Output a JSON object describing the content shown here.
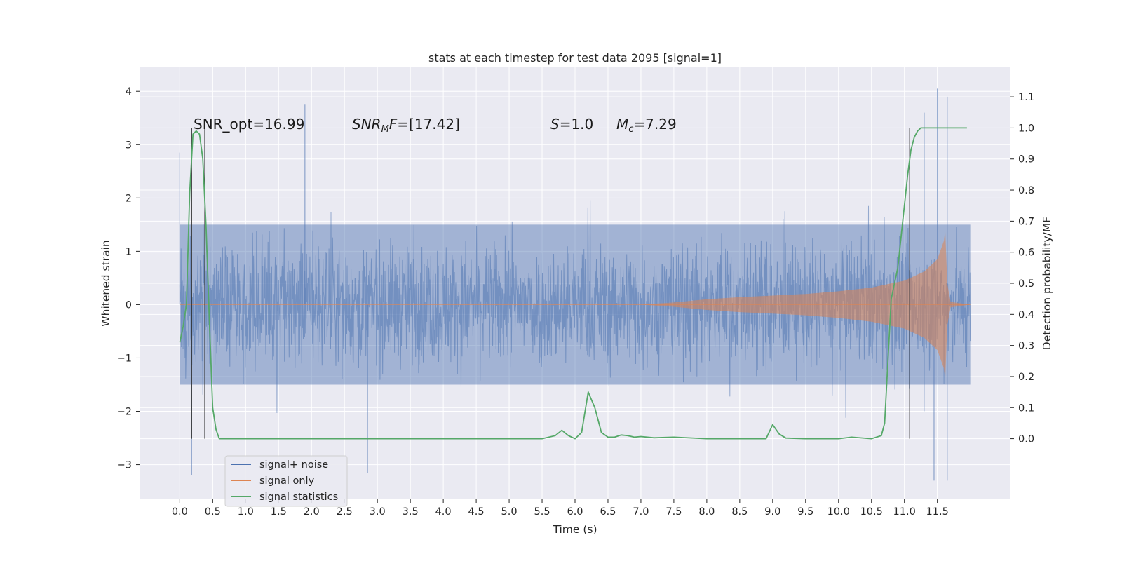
{
  "chart_data": {
    "type": "line",
    "title": "stats at each timestep for test data 2095 [signal=1]",
    "xlabel": "Time (s)",
    "ylabel": "Whitened strain",
    "y2label": "Detection probability/MF",
    "xlim": [
      -0.6,
      12.6
    ],
    "ylim": [
      -3.65,
      4.45
    ],
    "y2lim": [
      -0.195,
      1.195
    ],
    "x_ticks": [
      0.0,
      0.5,
      1.0,
      1.5,
      2.0,
      2.5,
      3.0,
      3.5,
      4.0,
      4.5,
      5.0,
      5.5,
      6.0,
      6.5,
      7.0,
      7.5,
      8.0,
      8.5,
      9.0,
      9.5,
      10.0,
      10.5,
      11.0,
      11.5
    ],
    "x_tick_labels": [
      "0.0",
      "0.5",
      "1.0",
      "1.5",
      "2.0",
      "2.5",
      "3.0",
      "3.5",
      "4.0",
      "4.5",
      "5.0",
      "5.5",
      "6.0",
      "6.5",
      "7.0",
      "7.5",
      "8.0",
      "8.5",
      "9.0",
      "9.5",
      "10.0",
      "10.5",
      "11.0",
      "11.5"
    ],
    "y_ticks": [
      -3,
      -2,
      -1,
      0,
      1,
      2,
      3,
      4
    ],
    "y_tick_labels": [
      "−3",
      "−2",
      "−1",
      "0",
      "1",
      "2",
      "3",
      "4"
    ],
    "y2_ticks": [
      0.0,
      0.1,
      0.2,
      0.3,
      0.4,
      0.5,
      0.6,
      0.7,
      0.8,
      0.9,
      1.0,
      1.1
    ],
    "y2_tick_labels": [
      "0.0",
      "0.1",
      "0.2",
      "0.3",
      "0.4",
      "0.5",
      "0.6",
      "0.7",
      "0.8",
      "0.9",
      "1.0",
      "1.1"
    ],
    "grid": true,
    "legend_position": "lower-left",
    "series": [
      {
        "name": "signal+ noise",
        "color": "#4c72b0",
        "x_range": [
          0.0,
          12.0
        ],
        "envelope_upper_approx": 1.5,
        "envelope_lower_approx": -1.5,
        "peaks": [
          [
            0.0,
            2.85
          ],
          [
            1.9,
            3.75
          ],
          [
            11.3,
            3.6
          ],
          [
            11.5,
            4.05
          ],
          [
            11.65,
            3.9
          ],
          [
            0.18,
            -3.2
          ],
          [
            11.65,
            -3.3
          ],
          [
            11.45,
            -3.3
          ],
          [
            2.85,
            -3.15
          ]
        ]
      },
      {
        "name": "signal only",
        "color": "#dd8452",
        "x": [
          0.0,
          7.0,
          7.5,
          8.0,
          8.5,
          9.0,
          9.5,
          10.0,
          10.5,
          11.0,
          11.3,
          11.5,
          11.6,
          11.62,
          11.65,
          11.7,
          12.0
        ],
        "amplitude": [
          0.0,
          0.0,
          0.04,
          0.1,
          0.14,
          0.17,
          0.2,
          0.25,
          0.32,
          0.45,
          0.62,
          0.85,
          1.2,
          1.4,
          0.4,
          0.05,
          0.0
        ]
      },
      {
        "name": "signal statistics",
        "color": "#55a868",
        "axis": "right",
        "x": [
          0.0,
          0.05,
          0.1,
          0.15,
          0.2,
          0.25,
          0.3,
          0.35,
          0.4,
          0.45,
          0.5,
          0.55,
          0.6,
          0.7,
          1.0,
          2.0,
          2.5,
          3.0,
          4.0,
          4.5,
          5.0,
          5.5,
          5.7,
          5.8,
          5.9,
          6.0,
          6.1,
          6.2,
          6.3,
          6.4,
          6.5,
          6.6,
          6.7,
          6.8,
          6.9,
          7.0,
          7.2,
          7.5,
          8.0,
          8.5,
          8.9,
          9.0,
          9.1,
          9.2,
          9.5,
          10.0,
          10.2,
          10.5,
          10.65,
          10.7,
          10.75,
          10.8,
          10.85,
          10.9,
          10.95,
          11.0,
          11.05,
          11.1,
          11.15,
          11.2,
          11.25,
          11.3,
          11.5,
          11.8,
          11.95
        ],
        "y": [
          0.31,
          0.36,
          0.43,
          0.79,
          0.98,
          0.99,
          0.98,
          0.9,
          0.68,
          0.38,
          0.1,
          0.03,
          0.0,
          0.0,
          0.0,
          0.0,
          0.0,
          0.0,
          0.0,
          0.0,
          0.0,
          0.0,
          0.01,
          0.027,
          0.01,
          0.0,
          0.02,
          0.15,
          0.1,
          0.02,
          0.005,
          0.005,
          0.012,
          0.01,
          0.005,
          0.007,
          0.003,
          0.005,
          0.0,
          0.0,
          0.0,
          0.045,
          0.015,
          0.002,
          0.0,
          0.0,
          0.005,
          0.0,
          0.01,
          0.05,
          0.25,
          0.45,
          0.5,
          0.55,
          0.65,
          0.75,
          0.85,
          0.93,
          0.97,
          0.99,
          1.0,
          1.0,
          1.0,
          1.0,
          1.0
        ]
      }
    ],
    "vertical_lines": [
      0.18,
      0.38,
      11.08
    ],
    "vertical_line_range_right": [
      0.0,
      1.0
    ],
    "annotations": [
      {
        "text": "SNR_opt=16.99",
        "x": 0.2,
        "y": 3.35
      },
      {
        "text": "SNR_MF=[17.42]",
        "x": 2.6,
        "y": 3.35
      },
      {
        "text": "S=1.0",
        "x": 5.6,
        "y": 3.35
      },
      {
        "text": "M_c=7.29",
        "x": 6.6,
        "y": 3.35
      }
    ]
  },
  "annotation_text": {
    "snr_opt": "SNR_opt=16.99",
    "snr_mf_main": "SNR",
    "snr_mf_sub": "M",
    "snr_mf_tail": "F",
    "snr_mf_value": "=[17.42]",
    "s_symbol": "S",
    "s_value": "=1.0",
    "mc_symbol": "M",
    "mc_sub": "c",
    "mc_value": "=7.29"
  },
  "legend": [
    {
      "label": "signal+ noise",
      "color": "#4c72b0"
    },
    {
      "label": "signal only",
      "color": "#dd8452"
    },
    {
      "label": "signal statistics",
      "color": "#55a868"
    }
  ],
  "colors": {
    "plot_bg": "#eaeaf2",
    "grid": "#ffffff",
    "vline": "#333333"
  }
}
